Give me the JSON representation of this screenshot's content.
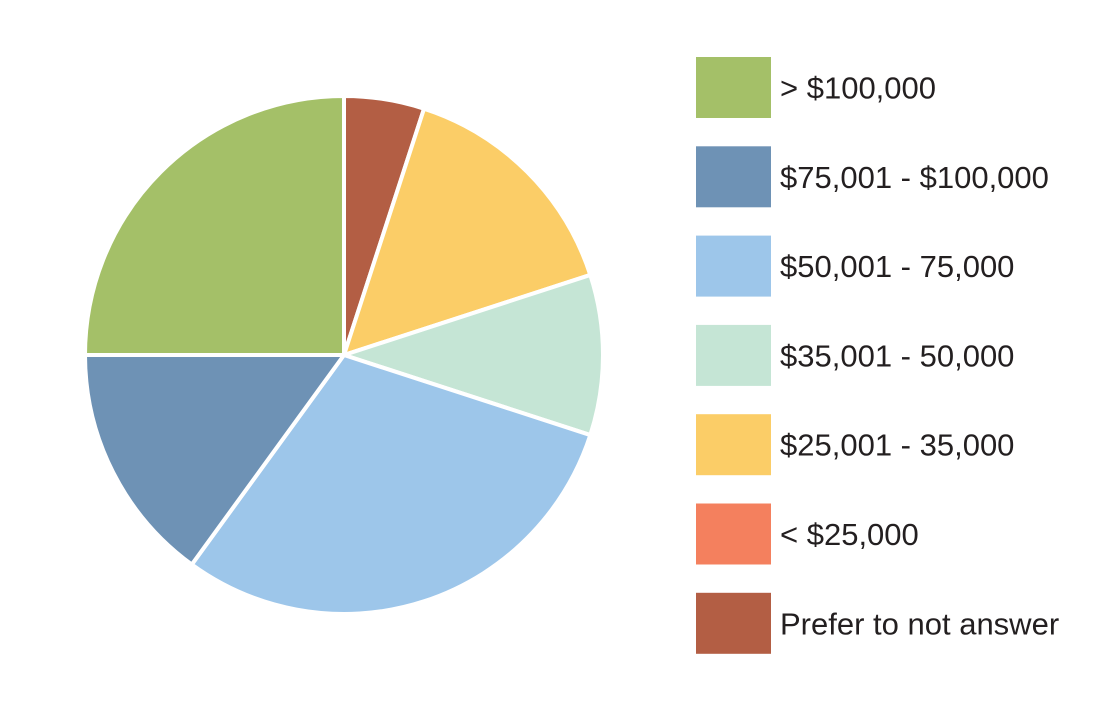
{
  "chart_data": {
    "type": "pie",
    "title": "",
    "start_angle_deg": 0,
    "direction": "clockwise",
    "legend_position": "right",
    "slices": [
      {
        "label": "Prefer to not answer",
        "value": 5,
        "color": "#b35e44"
      },
      {
        "label": "$25,001 - 35,000",
        "value": 15,
        "color": "#fbcd67"
      },
      {
        "label": "$35,001 - 50,000",
        "value": 10,
        "color": "#c5e5d5"
      },
      {
        "label": "$50,001 - 75,000",
        "value": 30,
        "color": "#9dc6ea"
      },
      {
        "label": "$75,001 - $100,000",
        "value": 15,
        "color": "#6e92b5"
      },
      {
        "label": "> $100,000",
        "value": 25,
        "color": "#a4c068"
      }
    ],
    "legend": [
      {
        "label": "> $100,000",
        "color": "#a4c068"
      },
      {
        "label": "$75,001 - $100,000",
        "color": "#6e92b5"
      },
      {
        "label": "$50,001 - 75,000",
        "color": "#9dc6ea"
      },
      {
        "label": "$35,001 - 50,000",
        "color": "#c5e5d5"
      },
      {
        "label": "$25,001 - 35,000",
        "color": "#fbcd67"
      },
      {
        "label": "< $25,000",
        "color": "#f4805e"
      },
      {
        "label": "Prefer to not answer",
        "color": "#b35e44"
      }
    ]
  }
}
